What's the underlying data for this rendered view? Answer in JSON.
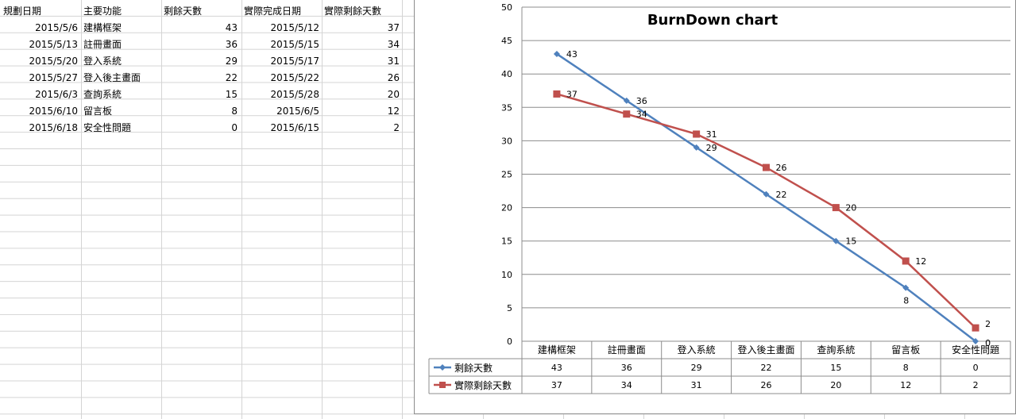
{
  "sheet": {
    "headers": [
      "規劃日期",
      "主要功能",
      "剩餘天數",
      "實際完成日期",
      "實際剩餘天數"
    ],
    "rows": [
      [
        "2015/5/6",
        "建構框架",
        "43",
        "2015/5/12",
        "37"
      ],
      [
        "2015/5/13",
        "註冊畫面",
        "36",
        "2015/5/15",
        "34"
      ],
      [
        "2015/5/20",
        "登入系統",
        "29",
        "2015/5/17",
        "31"
      ],
      [
        "2015/5/27",
        "登入後主畫面",
        "22",
        "2015/5/22",
        "26"
      ],
      [
        "2015/6/3",
        "查詢系統",
        "15",
        "2015/5/28",
        "20"
      ],
      [
        "2015/6/10",
        "留言板",
        "8",
        "2015/6/5",
        "12"
      ],
      [
        "2015/6/18",
        "安全性問題",
        "0",
        "2015/6/15",
        "2"
      ]
    ]
  },
  "chart_data": {
    "type": "line",
    "title": "BurnDown chart",
    "categories": [
      "建構框架",
      "註冊畫面",
      "登入系統",
      "登入後主畫面",
      "查詢系統",
      "留言板",
      "安全性問題"
    ],
    "series": [
      {
        "name": "剩餘天數",
        "values": [
          43,
          36,
          29,
          22,
          15,
          8,
          0
        ],
        "color": "#4f81bd",
        "marker": "diamond"
      },
      {
        "name": "實際剩餘天數",
        "values": [
          37,
          34,
          31,
          26,
          20,
          12,
          2
        ],
        "color": "#c0504d",
        "marker": "square"
      }
    ],
    "ylim": [
      0,
      50
    ],
    "yticks": [
      0,
      5,
      10,
      15,
      20,
      25,
      30,
      35,
      40,
      45,
      50
    ],
    "grid": true,
    "legend": "data-table",
    "data_labels": true
  }
}
